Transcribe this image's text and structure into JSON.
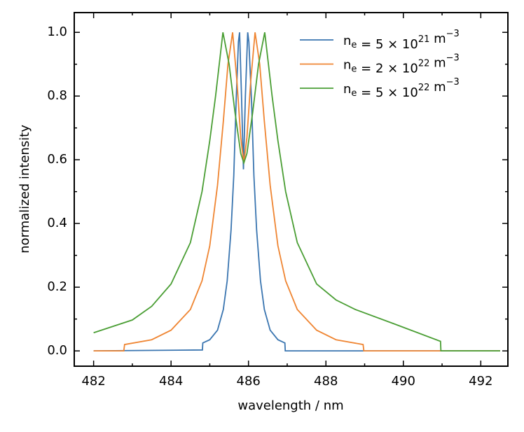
{
  "chart_data": {
    "type": "line",
    "xlabel": "wavelength / nm",
    "ylabel": "normalized intensity",
    "xlim": [
      481.5,
      492.7
    ],
    "ylim": [
      -0.048,
      1.062
    ],
    "xticks": [
      482,
      484,
      486,
      488,
      490,
      492
    ],
    "xminorticks": [
      483,
      485,
      487,
      489,
      491
    ],
    "yticks": [
      {
        "value": 0,
        "label": "0.0"
      },
      0.2,
      0.4,
      0.6,
      0.8,
      {
        "value": 1,
        "label": "1.0"
      }
    ],
    "yminorticks": [
      0.1,
      0.3,
      0.5,
      0.7,
      0.9
    ],
    "legend": "upper right",
    "series": [
      {
        "name": "n_e = 5 × 10^{21} m^{−3}",
        "color": "#3a75b0",
        "x": [
          482,
          484.81,
          484.82,
          485.0,
          485.2,
          485.35,
          485.45,
          485.55,
          485.62,
          485.68,
          485.74,
          485.77,
          485.82,
          485.87,
          485.92,
          485.98,
          486.01,
          486.08,
          486.14,
          486.21,
          486.31,
          486.41,
          486.56,
          486.76,
          486.94,
          486.95,
          492.5
        ],
        "values": [
          0,
          0.003,
          0.025,
          0.035,
          0.065,
          0.13,
          0.22,
          0.38,
          0.55,
          0.78,
          0.97,
          1.0,
          0.8,
          0.57,
          0.8,
          1.0,
          0.97,
          0.78,
          0.55,
          0.38,
          0.22,
          0.13,
          0.065,
          0.035,
          0.025,
          0,
          0
        ]
      },
      {
        "name": "n_e = 2 × 10^{22} m^{−3}",
        "color": "#ef8532",
        "x": [
          482,
          482.78,
          482.8,
          483.5,
          484.0,
          484.5,
          484.8,
          485.0,
          485.2,
          485.35,
          485.47,
          485.59,
          485.7,
          485.8,
          485.88,
          485.96,
          486.06,
          486.17,
          486.29,
          486.41,
          486.56,
          486.76,
          486.96,
          487.26,
          487.76,
          488.26,
          488.96,
          488.98,
          492.5
        ],
        "values": [
          0,
          0,
          0.02,
          0.035,
          0.065,
          0.13,
          0.22,
          0.33,
          0.52,
          0.72,
          0.9,
          1.0,
          0.85,
          0.67,
          0.59,
          0.67,
          0.85,
          1.0,
          0.9,
          0.72,
          0.52,
          0.33,
          0.22,
          0.13,
          0.065,
          0.035,
          0.02,
          0,
          0
        ]
      },
      {
        "name": "n_e = 5 × 10^{22} m^{−3}",
        "color": "#4a9e34",
        "x": [
          482,
          483,
          483.5,
          484,
          484.5,
          484.8,
          485.0,
          485.15,
          485.34,
          485.5,
          485.65,
          485.8,
          485.88,
          485.96,
          486.11,
          486.26,
          486.42,
          486.61,
          486.76,
          486.96,
          487.26,
          487.76,
          488.26,
          488.76,
          489.76,
          490.96,
          490.97,
          492.5
        ],
        "values": [
          0.057,
          0.097,
          0.14,
          0.21,
          0.34,
          0.5,
          0.66,
          0.8,
          1.0,
          0.9,
          0.75,
          0.62,
          0.59,
          0.62,
          0.75,
          0.9,
          1.0,
          0.8,
          0.66,
          0.5,
          0.34,
          0.21,
          0.16,
          0.13,
          0.085,
          0.03,
          0,
          0
        ]
      }
    ]
  }
}
